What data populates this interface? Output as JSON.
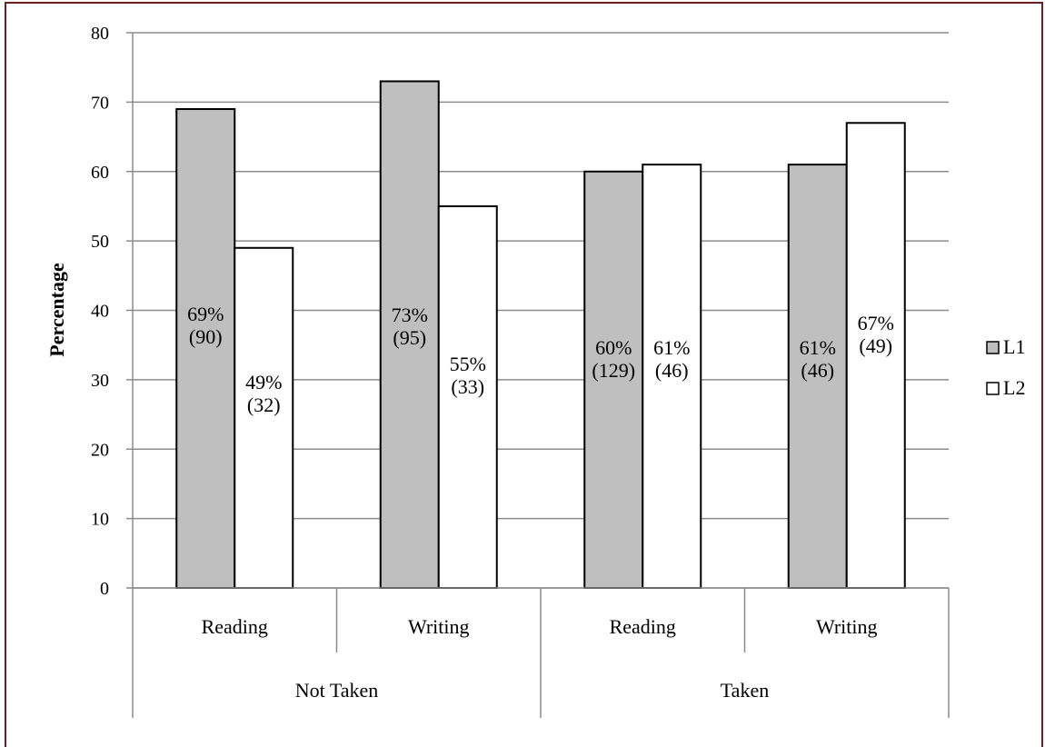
{
  "chart_data": {
    "type": "bar",
    "ylabel": "Percentage",
    "ylim": [
      0,
      80
    ],
    "yticks": [
      0,
      10,
      20,
      30,
      40,
      50,
      60,
      70,
      80
    ],
    "grid": true,
    "legend_position": "right",
    "groups": [
      "Not Taken",
      "Taken"
    ],
    "categories": [
      "Reading",
      "Writing",
      "Reading",
      "Writing"
    ],
    "series": [
      {
        "name": "L1",
        "color": "#bfbfbf",
        "values": [
          69,
          73,
          60,
          61
        ],
        "labels": [
          [
            "69%",
            "(90)"
          ],
          [
            "73%",
            "(95)"
          ],
          [
            "60%",
            "(129)"
          ],
          [
            "61%",
            "(46)"
          ]
        ]
      },
      {
        "name": "L2",
        "color": "#ffffff",
        "values": [
          49,
          55,
          61,
          67
        ],
        "labels": [
          [
            "49%",
            "(32)"
          ],
          [
            "55%",
            "(33)"
          ],
          [
            "61%",
            "(46)"
          ],
          [
            "67%",
            "(49)"
          ]
        ]
      }
    ]
  }
}
